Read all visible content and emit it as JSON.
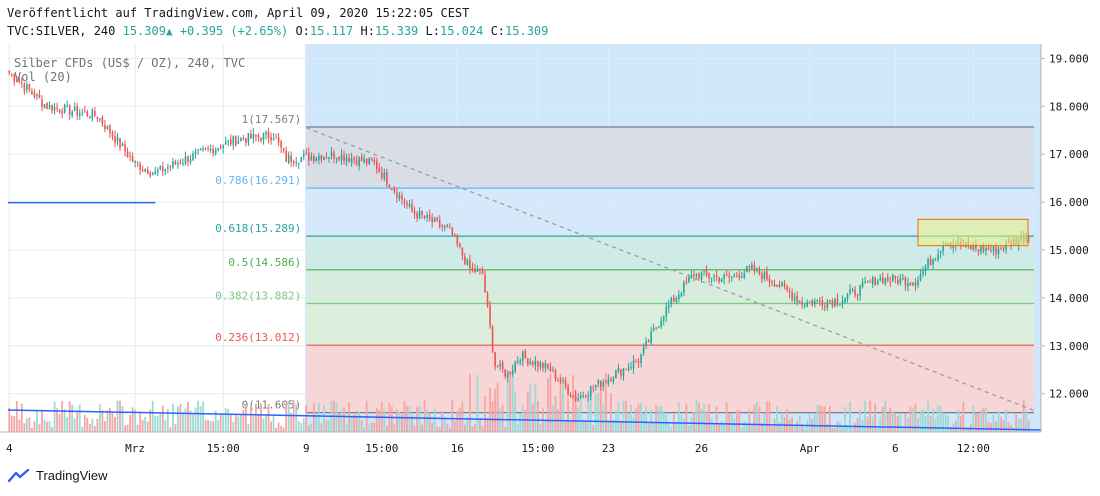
{
  "header": {
    "published": "Veröffentlicht auf TradingView.com, April 09, 2020 15:22:05 CEST",
    "symbol": "TVC:SILVER, 240",
    "last": "15.309",
    "change": "+0.395 (+2.65%)",
    "o_label": "O:",
    "o_val": "15.117",
    "h_label": "H:",
    "h_val": "15.339",
    "l_label": "L:",
    "l_val": "15.024",
    "c_label": "C:",
    "c_val": "15.309"
  },
  "legend": {
    "series": "Silber CFDs (US$ / OZ), 240, TVC",
    "volume": "Vol (20)"
  },
  "footer": {
    "brand": "TradingView"
  },
  "colors": {
    "up": "#26a69a",
    "down": "#ef5350",
    "vol_up": "#9fd9d3",
    "vol_down": "#f4a6a4",
    "highlight": "#cfe7fb",
    "trend": "#2962ff"
  },
  "chart_data": {
    "type": "candlestick",
    "title": "Silber CFDs (US$ / OZ), 240, TVC",
    "ylim": [
      11.2,
      19.3
    ],
    "y_ticks": [
      "19.000",
      "18.000",
      "17.000",
      "16.000",
      "15.000",
      "14.000",
      "13.000",
      "12.000"
    ],
    "x_ticks": [
      "4",
      "Mrz",
      "15:00",
      "9",
      "15:00",
      "16",
      "15:00",
      "23",
      "26",
      "Apr",
      "6",
      "12:00"
    ],
    "fibonacci": [
      {
        "label": "1(17.567)",
        "value": 17.567,
        "color": "#787b86"
      },
      {
        "label": "0.786(16.291)",
        "value": 16.291,
        "color": "#64b5f6"
      },
      {
        "label": "0.618(15.289)",
        "value": 15.289,
        "color": "#26a69a"
      },
      {
        "label": "0.5(14.586)",
        "value": 14.586,
        "color": "#4caf50"
      },
      {
        "label": "0.382(13.882)",
        "value": 13.882,
        "color": "#81c784"
      },
      {
        "label": "0.236(13.012)",
        "value": 13.012,
        "color": "#ef5350"
      },
      {
        "label": "0(11.605)",
        "value": 11.605,
        "color": "#787b86"
      }
    ],
    "annotations": {
      "highlight_start_tick": "9",
      "support_line_value": 15.989,
      "trend_line": [
        {
          "t": "9",
          "value": 17.55
        },
        {
          "t": "end",
          "value": 11.65
        }
      ],
      "resistance_box": {
        "y_range": [
          15.09,
          15.64
        ]
      }
    },
    "keypoints": [
      {
        "i": 0,
        "c": 18.7
      },
      {
        "i": 15,
        "c": 18.0
      },
      {
        "i": 35,
        "c": 17.8
      },
      {
        "i": 50,
        "c": 16.8
      },
      {
        "i": 58,
        "c": 16.6
      },
      {
        "i": 70,
        "c": 16.9
      },
      {
        "i": 90,
        "c": 17.3
      },
      {
        "i": 105,
        "c": 17.4
      },
      {
        "i": 110,
        "c": 16.9
      },
      {
        "i": 130,
        "c": 17.0
      },
      {
        "i": 145,
        "c": 16.8
      },
      {
        "i": 160,
        "c": 15.8
      },
      {
        "i": 175,
        "c": 15.4
      },
      {
        "i": 183,
        "c": 14.6
      },
      {
        "i": 188,
        "c": 14.5
      },
      {
        "i": 193,
        "c": 12.6
      },
      {
        "i": 198,
        "c": 12.4
      },
      {
        "i": 203,
        "c": 12.8
      },
      {
        "i": 215,
        "c": 12.5
      },
      {
        "i": 225,
        "c": 11.9
      },
      {
        "i": 240,
        "c": 12.4
      },
      {
        "i": 250,
        "c": 12.7
      },
      {
        "i": 260,
        "c": 13.7
      },
      {
        "i": 272,
        "c": 14.5
      },
      {
        "i": 285,
        "c": 14.4
      },
      {
        "i": 295,
        "c": 14.6
      },
      {
        "i": 305,
        "c": 14.3
      },
      {
        "i": 315,
        "c": 13.9
      },
      {
        "i": 330,
        "c": 13.95
      },
      {
        "i": 345,
        "c": 14.4
      },
      {
        "i": 360,
        "c": 14.35
      },
      {
        "i": 372,
        "c": 15.2
      },
      {
        "i": 380,
        "c": 15.05
      },
      {
        "i": 392,
        "c": 15.0
      },
      {
        "i": 405,
        "c": 15.31
      }
    ]
  }
}
